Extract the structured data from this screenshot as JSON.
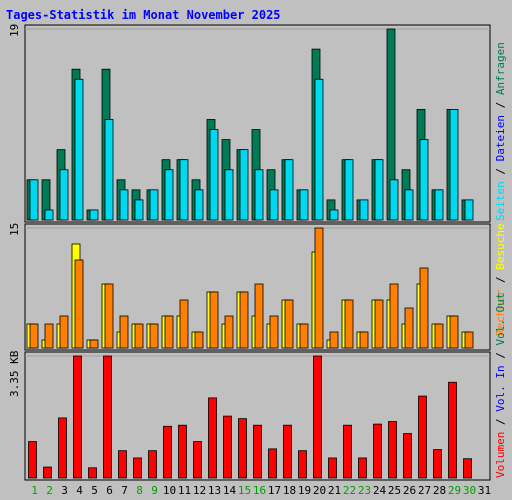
{
  "chart_data": [
    {
      "type": "bar",
      "title": "Tages-Statistik im Monat November 2025",
      "ylabel_top": "19",
      "legend": [
        "Anfragen",
        "Dateien",
        "Seiten"
      ],
      "colors": {
        "Anfragen": "#007b55",
        "Dateien": "#00d8f0",
        "Seiten": "#00d8f0"
      },
      "ylim": [
        0,
        19
      ],
      "categories": [
        "1",
        "2",
        "3",
        "4",
        "5",
        "6",
        "7",
        "8",
        "9",
        "10",
        "11",
        "12",
        "13",
        "14",
        "15",
        "16",
        "17",
        "18",
        "19",
        "20",
        "21",
        "22",
        "23",
        "24",
        "25",
        "26",
        "27",
        "28",
        "29",
        "30",
        "31"
      ],
      "series": [
        {
          "name": "Anfragen",
          "values": [
            4,
            4,
            7,
            15,
            1,
            15,
            4,
            3,
            3,
            6,
            6,
            4,
            10,
            8,
            7,
            9,
            5,
            6,
            3,
            17,
            2,
            6,
            2,
            6,
            19,
            5,
            11,
            3,
            11,
            2,
            0
          ]
        },
        {
          "name": "Dateien",
          "values": [
            4,
            1,
            5,
            14,
            1,
            10,
            3,
            2,
            3,
            5,
            6,
            3,
            9,
            5,
            7,
            5,
            3,
            6,
            3,
            14,
            1,
            6,
            2,
            6,
            4,
            3,
            8,
            3,
            11,
            2,
            0
          ]
        }
      ]
    },
    {
      "type": "bar",
      "ylabel_top": "15",
      "legend": [
        "Besuche",
        "Rechner"
      ],
      "colors": {
        "Besuche": "#ffff00",
        "Rechner": "#ff8000"
      },
      "ylim": [
        0,
        15
      ],
      "series": [
        {
          "name": "Besuche",
          "values": [
            3,
            1,
            3,
            13,
            1,
            8,
            2,
            3,
            3,
            4,
            4,
            2,
            7,
            3,
            7,
            4,
            3,
            6,
            3,
            12,
            1,
            6,
            2,
            6,
            6,
            3,
            8,
            3,
            4,
            2,
            0
          ]
        },
        {
          "name": "Rechner",
          "values": [
            3,
            3,
            4,
            11,
            1,
            8,
            4,
            3,
            3,
            4,
            6,
            2,
            7,
            4,
            7,
            8,
            4,
            6,
            3,
            15,
            2,
            6,
            2,
            6,
            8,
            5,
            10,
            3,
            4,
            2,
            0
          ]
        }
      ]
    },
    {
      "type": "bar",
      "ylabel_top": "3.35 KB",
      "legend": [
        "Volumen",
        "Vol. In",
        "Vol. Out"
      ],
      "colors": {
        "Volumen": "#ff0000"
      },
      "ylim": [
        0,
        3.35
      ],
      "series": [
        {
          "name": "Volumen",
          "values": [
            1.0,
            0.3,
            1.65,
            3.35,
            0.28,
            3.35,
            0.75,
            0.55,
            0.75,
            1.42,
            1.45,
            1.0,
            2.2,
            1.7,
            1.63,
            1.45,
            0.8,
            1.45,
            0.75,
            3.35,
            0.55,
            1.45,
            0.55,
            1.48,
            1.55,
            1.22,
            2.25,
            0.78,
            2.63,
            0.53,
            0
          ]
        }
      ]
    }
  ],
  "title": "Tages-Statistik im Monat November 2025",
  "weekends": [
    "1",
    "2",
    "8",
    "9",
    "15",
    "16",
    "22",
    "23",
    "29",
    "30"
  ],
  "colors": {
    "background": "#c0c0c0",
    "title": "#0000ff",
    "grid": "#a0a0a0",
    "weekday": "#000000",
    "weekend": "#00a000",
    "Vol. In": "#0000ff",
    "Vol. Out": "#007b55",
    "Volumen": "#ff0000"
  }
}
